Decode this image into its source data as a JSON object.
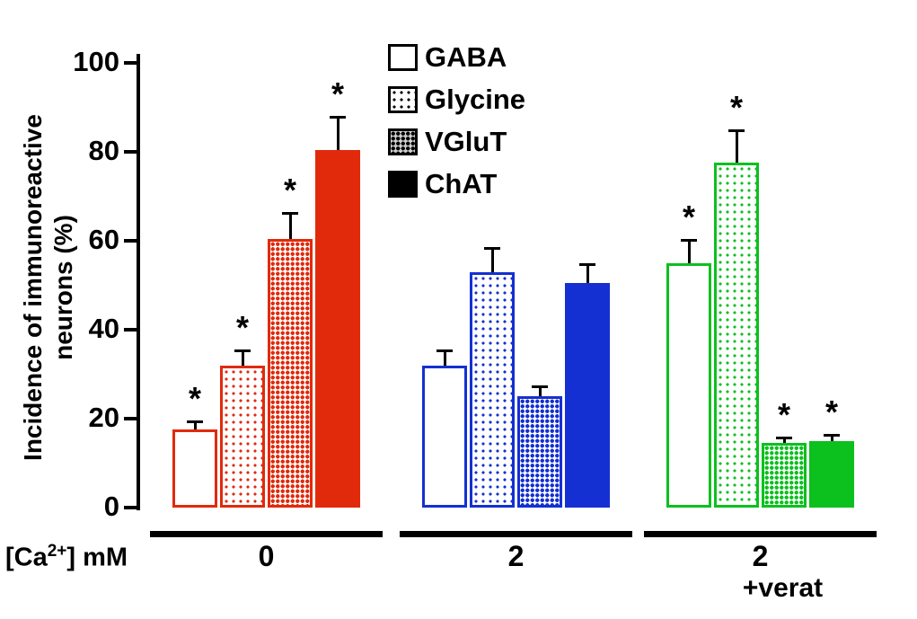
{
  "chart_data": {
    "type": "bar",
    "title": "",
    "ylabel": "Incidence of immunoreactive\nneurons (%)",
    "ylim": [
      0,
      100
    ],
    "yticks": [
      0,
      20,
      40,
      60,
      80,
      100
    ],
    "grid": false,
    "legend_position": "top-center",
    "sig_symbol": "*",
    "xunit": {
      "pre": "[Ca",
      "sup": "2+",
      "post": "] mM"
    },
    "legend": [
      {
        "label": "GABA",
        "pattern": "open"
      },
      {
        "label": "Glycine",
        "pattern": "light-dots"
      },
      {
        "label": "VGluT",
        "pattern": "dense-dots"
      },
      {
        "label": "ChAT",
        "pattern": "solid"
      }
    ],
    "groups": [
      {
        "label": "0",
        "sublabel": "",
        "color": "#e12a0c",
        "bars": [
          {
            "series": "GABA",
            "pattern": "open",
            "value": 17.5,
            "error": 2,
            "sig": true
          },
          {
            "series": "Glycine",
            "pattern": "light-dots",
            "value": 32,
            "error": 3.5,
            "sig": true
          },
          {
            "series": "VGluT",
            "pattern": "dense-dots",
            "value": 60.5,
            "error": 6,
            "sig": true
          },
          {
            "series": "ChAT",
            "pattern": "solid",
            "value": 80.5,
            "error": 7.5,
            "sig": true
          }
        ]
      },
      {
        "label": "2",
        "sublabel": "",
        "color": "#1430d2",
        "bars": [
          {
            "series": "GABA",
            "pattern": "open",
            "value": 32,
            "error": 3.5,
            "sig": false
          },
          {
            "series": "Glycine",
            "pattern": "light-dots",
            "value": 53,
            "error": 5.5,
            "sig": false
          },
          {
            "series": "VGluT",
            "pattern": "dense-dots",
            "value": 25,
            "error": 2.5,
            "sig": false
          },
          {
            "series": "ChAT",
            "pattern": "solid",
            "value": 50.5,
            "error": 4.5,
            "sig": false
          }
        ]
      },
      {
        "label": "2",
        "sublabel": "+verat",
        "color": "#0cc01e",
        "bars": [
          {
            "series": "GABA",
            "pattern": "open",
            "value": 55,
            "error": 5.5,
            "sig": true
          },
          {
            "series": "Glycine",
            "pattern": "light-dots",
            "value": 77.5,
            "error": 7.5,
            "sig": true
          },
          {
            "series": "VGluT",
            "pattern": "dense-dots",
            "value": 14.5,
            "error": 1.5,
            "sig": true
          },
          {
            "series": "ChAT",
            "pattern": "solid",
            "value": 15,
            "error": 1.5,
            "sig": true
          }
        ]
      }
    ]
  }
}
